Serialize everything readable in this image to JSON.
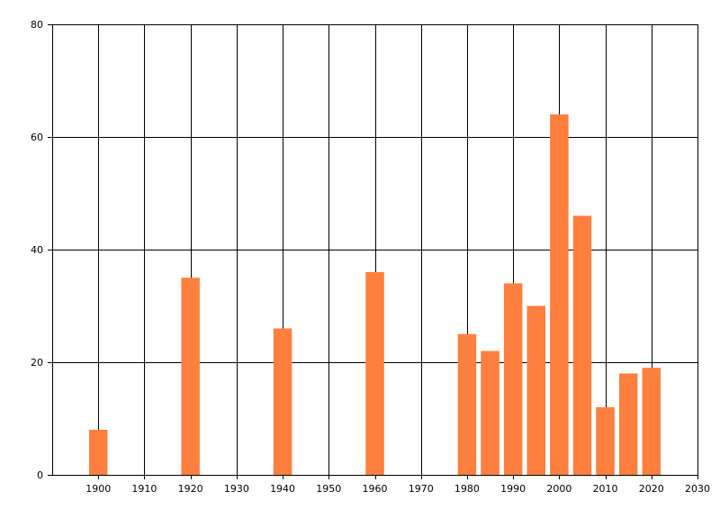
{
  "chart_data": {
    "type": "bar",
    "title": "",
    "xlabel": "",
    "ylabel": "",
    "xlim": [
      1890,
      2030
    ],
    "ylim": [
      0,
      80
    ],
    "grid": true,
    "x_ticks": [
      1900,
      1910,
      1920,
      1930,
      1940,
      1950,
      1960,
      1970,
      1980,
      1990,
      2000,
      2010,
      2020,
      2030
    ],
    "y_ticks": [
      0,
      20,
      40,
      60,
      80
    ],
    "bar_color": "#FF7F3F",
    "bar_width_years": 4,
    "series": [
      {
        "x": [
          1900,
          1920,
          1940,
          1960,
          1980,
          1985,
          1990,
          1995,
          2000,
          2005,
          2010,
          2015,
          2020
        ],
        "values": [
          8,
          35,
          26,
          36,
          25,
          22,
          34,
          30,
          64,
          46,
          12,
          18,
          19
        ]
      }
    ]
  }
}
